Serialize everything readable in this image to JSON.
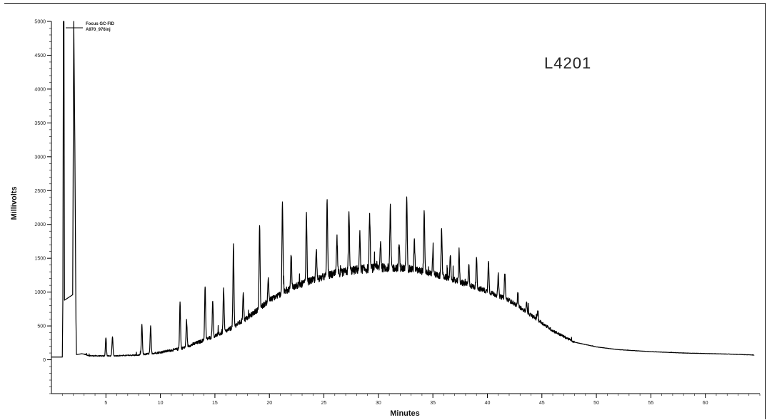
{
  "chart_data": {
    "type": "line",
    "title": "",
    "sample_label": "L4201",
    "xlabel": "Minutes",
    "ylabel": "Millivolts",
    "xlim": [
      0,
      65
    ],
    "ylim": [
      -500,
      5000
    ],
    "x_ticks": [
      5,
      10,
      15,
      20,
      25,
      30,
      35,
      40,
      45,
      50,
      55,
      60
    ],
    "y_ticks": [
      0,
      500,
      1000,
      1500,
      2000,
      2500,
      3000,
      3500,
      4000,
      4500,
      5000
    ],
    "grid": false,
    "legend": {
      "position": "top-left",
      "entries": [
        "Focus GC-FID",
        "A970_976inj"
      ]
    },
    "series": [
      {
        "name": "A970_976inj",
        "color": "#000000",
        "baseline": [
          [
            0,
            40
          ],
          [
            1.0,
            40
          ],
          [
            2.8,
            90
          ],
          [
            3.5,
            60
          ],
          [
            5,
            55
          ],
          [
            8,
            70
          ],
          [
            10,
            110
          ],
          [
            12,
            170
          ],
          [
            14,
            290
          ],
          [
            16,
            420
          ],
          [
            18,
            620
          ],
          [
            20,
            880
          ],
          [
            22,
            1060
          ],
          [
            24,
            1180
          ],
          [
            26,
            1270
          ],
          [
            28,
            1330
          ],
          [
            30,
            1360
          ],
          [
            32,
            1360
          ],
          [
            34,
            1310
          ],
          [
            36,
            1230
          ],
          [
            38,
            1120
          ],
          [
            40,
            1010
          ],
          [
            42,
            880
          ],
          [
            44,
            660
          ],
          [
            46,
            430
          ],
          [
            48,
            260
          ],
          [
            50,
            190
          ],
          [
            52,
            150
          ],
          [
            55,
            120
          ],
          [
            58,
            100
          ],
          [
            62,
            85
          ],
          [
            64.5,
            70
          ]
        ],
        "solvent_peaks": [
          {
            "x": 1.1,
            "y": 5000
          },
          {
            "x": 2.05,
            "y": 5000
          }
        ],
        "peaks": [
          {
            "x": 5.0,
            "y": 330
          },
          {
            "x": 5.6,
            "y": 340
          },
          {
            "x": 8.3,
            "y": 520
          },
          {
            "x": 9.1,
            "y": 490
          },
          {
            "x": 11.8,
            "y": 850
          },
          {
            "x": 12.4,
            "y": 580
          },
          {
            "x": 14.1,
            "y": 1100
          },
          {
            "x": 14.8,
            "y": 890
          },
          {
            "x": 15.8,
            "y": 1050
          },
          {
            "x": 16.7,
            "y": 1680
          },
          {
            "x": 17.6,
            "y": 1010
          },
          {
            "x": 19.1,
            "y": 2000
          },
          {
            "x": 19.9,
            "y": 1210
          },
          {
            "x": 21.2,
            "y": 2320
          },
          {
            "x": 22.0,
            "y": 1560
          },
          {
            "x": 23.4,
            "y": 2150
          },
          {
            "x": 24.3,
            "y": 1620
          },
          {
            "x": 25.3,
            "y": 2360
          },
          {
            "x": 26.2,
            "y": 1790
          },
          {
            "x": 27.3,
            "y": 2180
          },
          {
            "x": 28.3,
            "y": 1850
          },
          {
            "x": 29.2,
            "y": 2150
          },
          {
            "x": 30.2,
            "y": 1760
          },
          {
            "x": 31.1,
            "y": 2250
          },
          {
            "x": 31.9,
            "y": 1720
          },
          {
            "x": 32.6,
            "y": 2420
          },
          {
            "x": 33.3,
            "y": 1760
          },
          {
            "x": 34.2,
            "y": 2180
          },
          {
            "x": 35.0,
            "y": 1580
          },
          {
            "x": 35.8,
            "y": 1930
          },
          {
            "x": 36.6,
            "y": 1510
          },
          {
            "x": 37.4,
            "y": 1620
          },
          {
            "x": 38.3,
            "y": 1390
          },
          {
            "x": 39.0,
            "y": 1540
          },
          {
            "x": 40.1,
            "y": 1490
          },
          {
            "x": 41.0,
            "y": 1230
          },
          {
            "x": 41.6,
            "y": 1290
          },
          {
            "x": 42.8,
            "y": 990
          },
          {
            "x": 43.6,
            "y": 860
          },
          {
            "x": 44.6,
            "y": 720
          }
        ]
      }
    ]
  }
}
